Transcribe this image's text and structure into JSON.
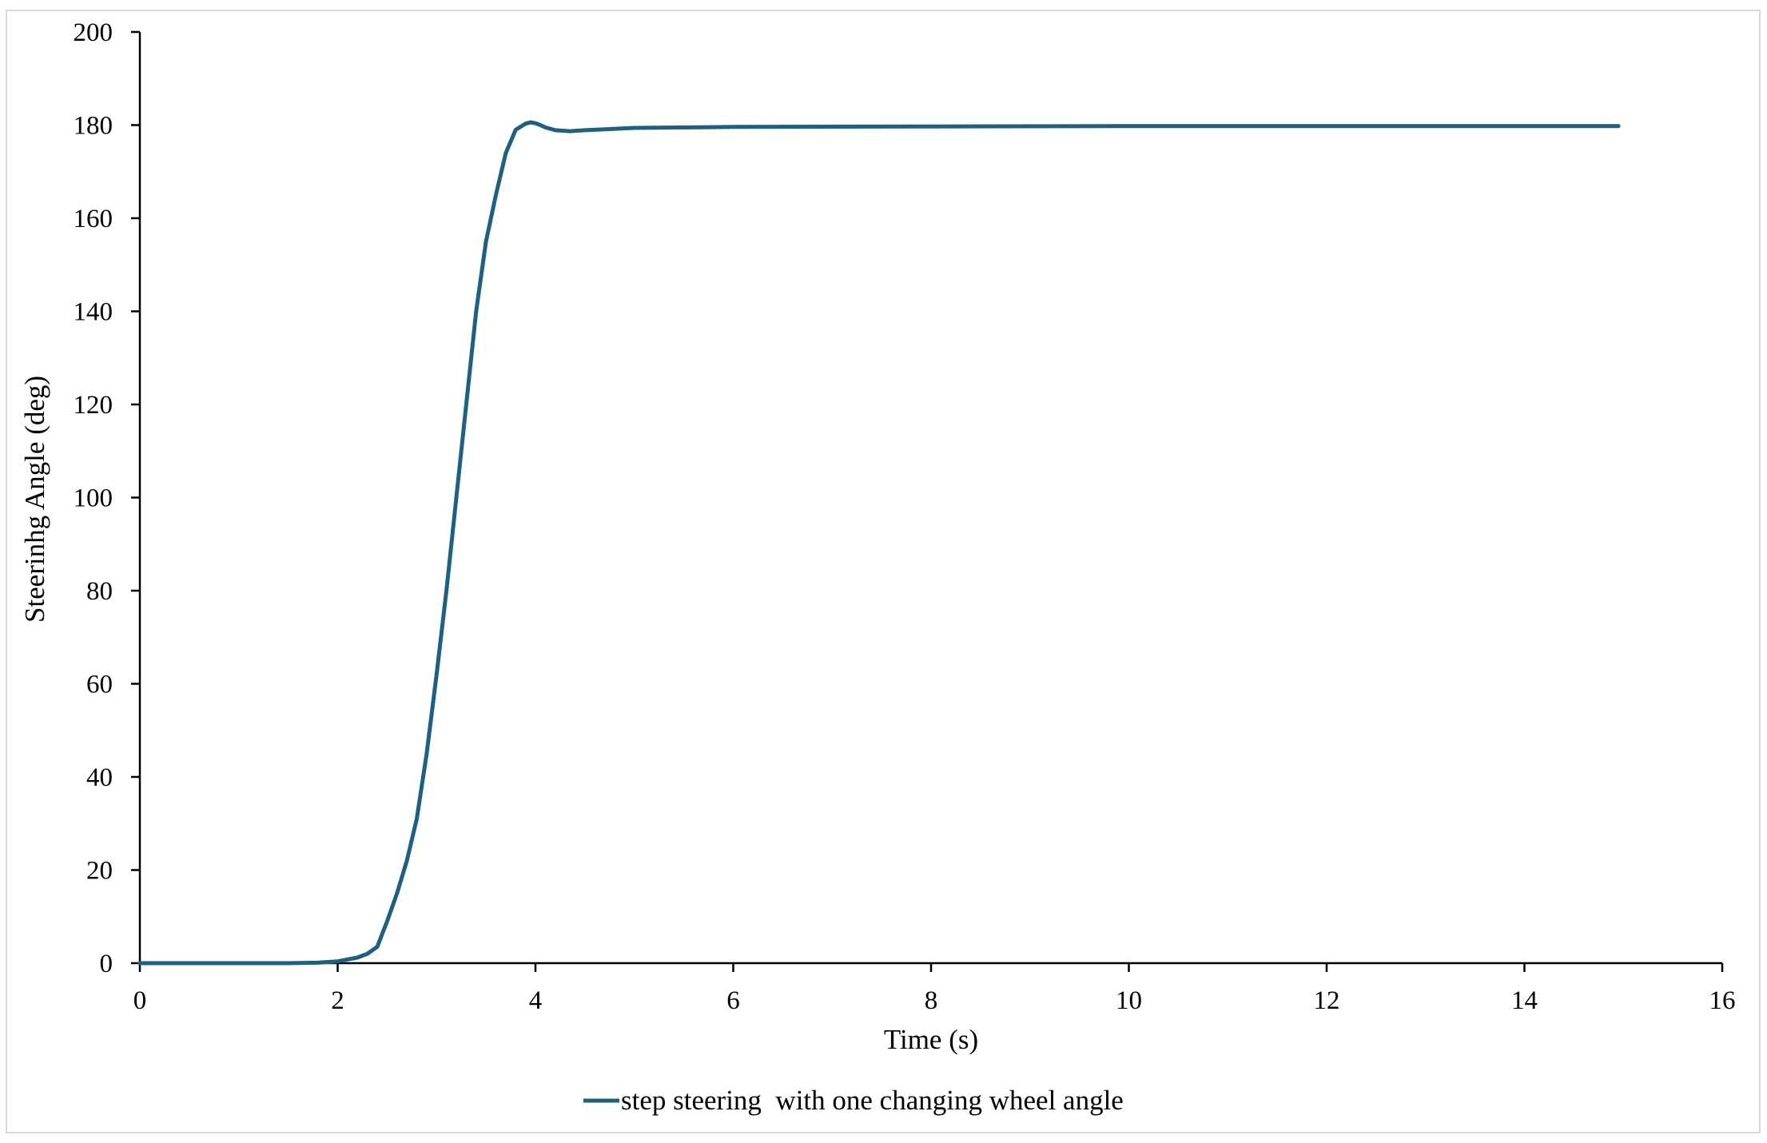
{
  "chart_data": {
    "type": "line",
    "title": "",
    "xlabel": "Time (s)",
    "ylabel": "Steerinhg Angle (deg)",
    "xlim": [
      0,
      16
    ],
    "ylim": [
      0,
      200
    ],
    "xticks": [
      0,
      2,
      4,
      6,
      8,
      10,
      12,
      14,
      16
    ],
    "yticks": [
      0,
      20,
      40,
      60,
      80,
      100,
      120,
      140,
      160,
      180,
      200
    ],
    "grid": false,
    "legend_position": "bottom-center",
    "series": [
      {
        "name": "step steering  with one changing wheel angle",
        "color": "#1f5f7f",
        "x": [
          0,
          0.5,
          1.0,
          1.5,
          1.8,
          2.0,
          2.2,
          2.3,
          2.4,
          2.5,
          2.6,
          2.7,
          2.8,
          2.9,
          3.0,
          3.1,
          3.2,
          3.3,
          3.4,
          3.5,
          3.6,
          3.7,
          3.8,
          3.9,
          3.95,
          4.0,
          4.05,
          4.1,
          4.2,
          4.35,
          4.5,
          5.0,
          6.0,
          8.0,
          10.0,
          12.0,
          14.0,
          14.95
        ],
        "y": [
          0,
          0,
          0,
          0,
          0.1,
          0.4,
          1.2,
          2.0,
          3.5,
          9.0,
          15.0,
          22.0,
          31.0,
          45.0,
          62.0,
          80.0,
          100.0,
          120.0,
          140.0,
          155.0,
          165.0,
          174.0,
          179.0,
          180.3,
          180.6,
          180.4,
          180.0,
          179.5,
          178.9,
          178.7,
          178.9,
          179.4,
          179.6,
          179.7,
          179.8,
          179.8,
          179.8,
          179.8
        ]
      }
    ]
  }
}
